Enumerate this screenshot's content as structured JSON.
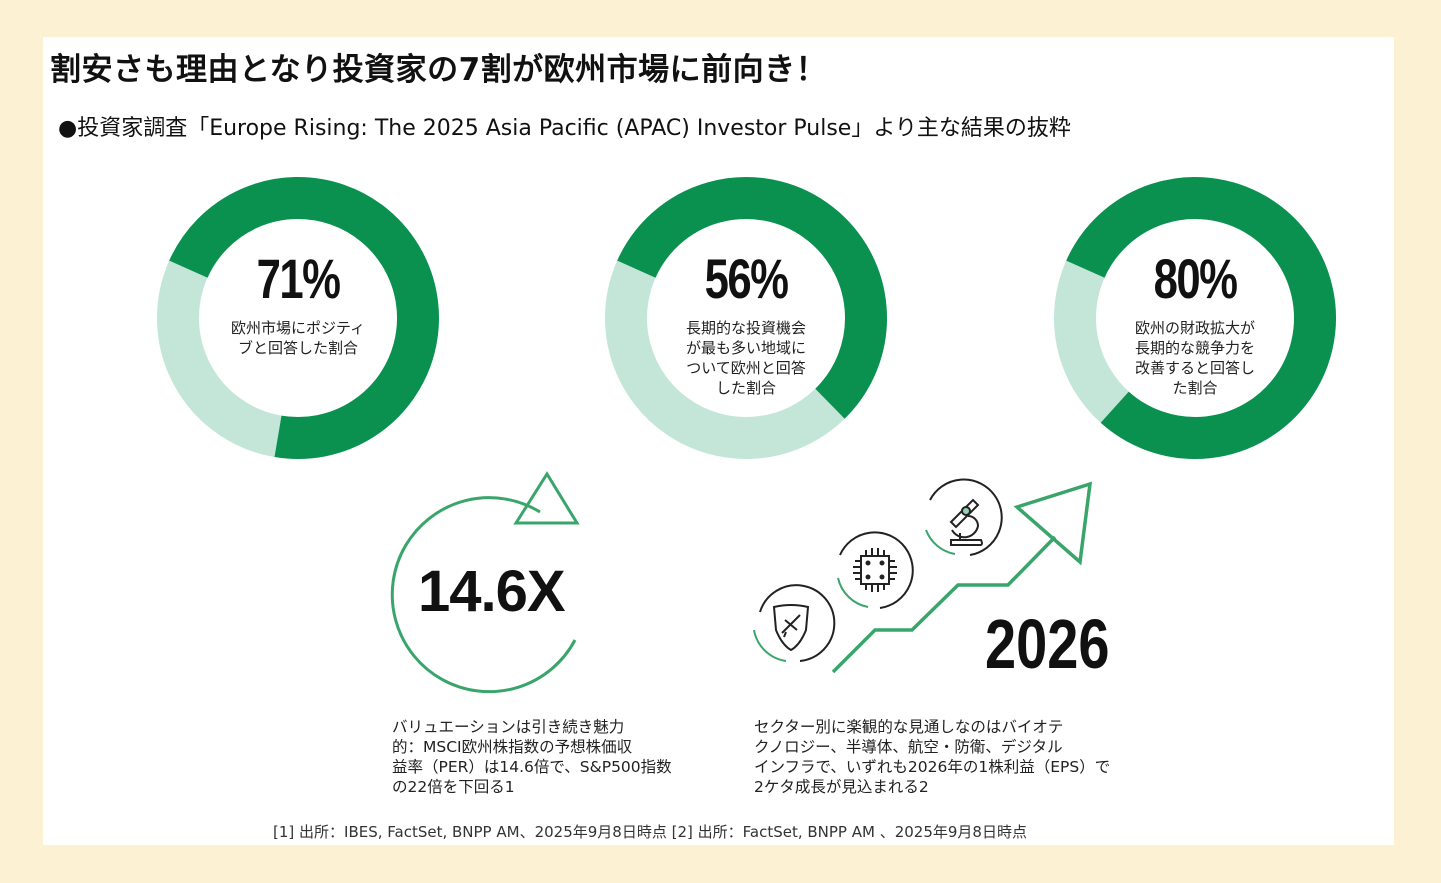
{
  "header": {
    "title": "割安さも理由となり投資家の7割が欧州市場に前向き！",
    "subtitle": "●投資家調査「Europe Rising: The 2025 Asia Pacific (APAC) Investor Pulse」より主な結果の抜粋"
  },
  "colors": {
    "dark_green": "#0a9150",
    "light_green": "#c3e6d8",
    "background": "#fdf1d3",
    "line_green": "#3aa56b"
  },
  "chart_data": [
    {
      "type": "pie",
      "variant": "donut",
      "value_label": "71%",
      "values": [
        71,
        29
      ],
      "label": "欧州市場にポジティブと回答した割合"
    },
    {
      "type": "pie",
      "variant": "donut",
      "value_label": "56%",
      "values": [
        56,
        44
      ],
      "label": "長期的な投資機会が最も多い地域について欧州と回答した割合"
    },
    {
      "type": "pie",
      "variant": "donut",
      "value_label": "80%",
      "values": [
        80,
        20
      ],
      "label": "欧州の財政拡大が長期的な競争力を改善すると回答した割合"
    }
  ],
  "valuation": {
    "figure": "14.6X",
    "text": "バリュエーションは引き続き魅力\n的：MSCI欧州株指数の予想株価収\n益率（PER）は14.6倍で、S&P500指数\nの22倍を下回る1",
    "icon": "cycle-arrow-icon"
  },
  "sectors": {
    "figure": "2026",
    "text": "セクター別に楽観的な見通しなのはバイオテ\nクノロジー、半導体、航空・防衛、デジタル\nインフラで、いずれも2026年の1株利益（EPS）で\n2ケタ成長が見込まれる2",
    "icons": [
      "shield-airplane-icon",
      "chip-icon",
      "microscope-icon",
      "growth-arrow-icon"
    ]
  },
  "footer": {
    "sources": "[1] 出所：IBES, FactSet, BNPP AM、2025年9月8日時点 [2] 出所：FactSet, BNPP AM 、2025年9月8日時点"
  }
}
